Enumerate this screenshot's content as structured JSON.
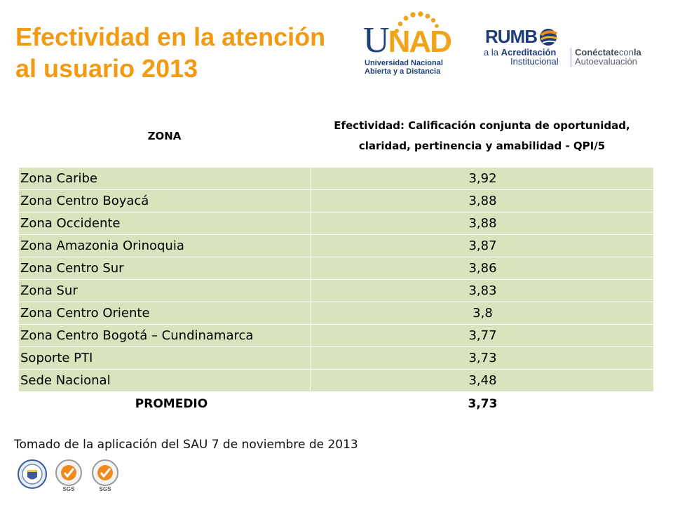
{
  "title": {
    "line1": "Efectividad en la atención",
    "line2": "al usuario  2013"
  },
  "logos": {
    "unad": {
      "mark_u": "U",
      "mark_n": "N",
      "mark_ad": "AD",
      "subtitle_line1": "Universidad Nacional",
      "subtitle_line2": "Abierta y a Distancia"
    },
    "rumbo": {
      "word": "RUMB",
      "line1_prefix": "a la ",
      "line1_bold": "Acreditación",
      "line2": "Institucional",
      "right_bold": "Conéctate",
      "right_mid": "con",
      "right_end": "la",
      "right_line2": "Autoevaluación"
    },
    "seal_label": "SGS"
  },
  "colors": {
    "title": "#f29a12",
    "row_fill": "#d7e4bd",
    "brand_blue": "#1e3f7a",
    "brand_orange": "#f0a41c"
  },
  "table": {
    "headers": {
      "zone": "ZONA",
      "efectividad": "Efectividad:  Calificación conjunta de oportunidad, claridad, pertinencia y amabilidad - QPI/5"
    },
    "rows": [
      {
        "zona": "Zona Caribe",
        "valor": "3,92"
      },
      {
        "zona": "Zona Centro Boyacá",
        "valor": "3,88"
      },
      {
        "zona": "Zona Occidente",
        "valor": "3,88"
      },
      {
        "zona": "Zona Amazonia Orinoquia",
        "valor": "3,87"
      },
      {
        "zona": "Zona Centro Sur",
        "valor": "3,86"
      },
      {
        "zona": "Zona Sur",
        "valor": "3,83"
      },
      {
        "zona": "Zona Centro Oriente",
        "valor": "3,8"
      },
      {
        "zona": "Zona Centro Bogotá – Cundinamarca",
        "valor": "3,77"
      },
      {
        "zona": "Soporte PTI",
        "valor": "3,73"
      },
      {
        "zona": "Sede Nacional",
        "valor": "3,48"
      }
    ],
    "average": {
      "label": "PROMEDIO",
      "valor": "3,73"
    }
  },
  "source": "Tomado de la aplicación del SAU 7 de noviembre de 2013",
  "icons": [
    "colombia-shield-icon",
    "sgs-certification-seal-icon",
    "sgs-certification-seal-icon"
  ]
}
